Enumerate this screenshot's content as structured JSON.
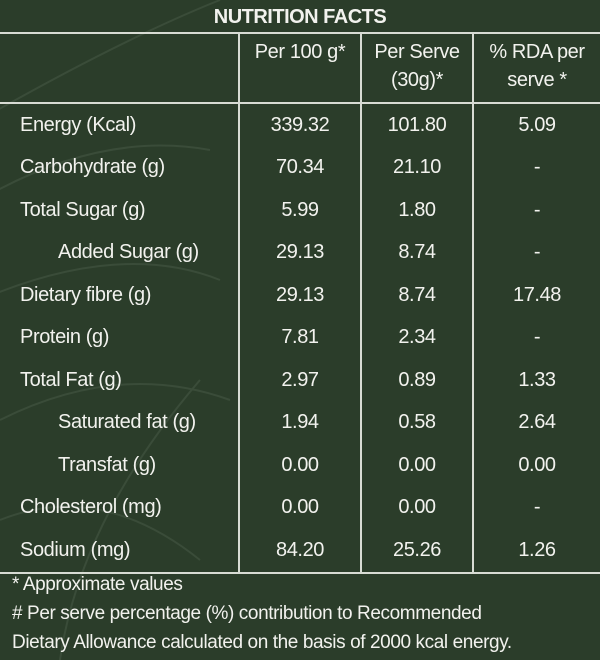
{
  "title": "NUTRITION FACTS",
  "headers": [
    "",
    "Per 100 g*",
    "Per Serve (30g)*",
    "% RDA per serve *"
  ],
  "rows": [
    {
      "name": "Energy (Kcal)",
      "per100": "339.32",
      "perServe": "101.80",
      "rda": "5.09",
      "indent": false
    },
    {
      "name": "Carbohydrate (g)",
      "per100": "70.34",
      "perServe": "21.10",
      "rda": "-",
      "indent": false
    },
    {
      "name": "Total Sugar (g)",
      "per100": "5.99",
      "perServe": "1.80",
      "rda": "-",
      "indent": false
    },
    {
      "name": "Added Sugar (g)",
      "per100": "29.13",
      "perServe": "8.74",
      "rda": "-",
      "indent": true
    },
    {
      "name": "Dietary fibre (g)",
      "per100": "29.13",
      "perServe": "8.74",
      "rda": "17.48",
      "indent": false
    },
    {
      "name": "Protein (g)",
      "per100": "7.81",
      "perServe": "2.34",
      "rda": "-",
      "indent": false
    },
    {
      "name": "Total Fat (g)",
      "per100": "2.97",
      "perServe": "0.89",
      "rda": "1.33",
      "indent": false
    },
    {
      "name": "Saturated fat (g)",
      "per100": "1.94",
      "perServe": "0.58",
      "rda": "2.64",
      "indent": true
    },
    {
      "name": "Transfat (g)",
      "per100": "0.00",
      "perServe": "0.00",
      "rda": "0.00",
      "indent": true
    },
    {
      "name": "Cholesterol (mg)",
      "per100": "0.00",
      "perServe": "0.00",
      "rda": "-",
      "indent": false
    },
    {
      "name": "Sodium (mg)",
      "per100": "84.20",
      "perServe": "25.26",
      "rda": "1.26",
      "indent": false
    }
  ],
  "notes": [
    "* Approximate values",
    "# Per serve percentage (%) contribution to Recommended",
    "Dietary Allowance calculated on the basis of 2000 kcal energy."
  ],
  "colors": {
    "background": "#2b3d2a",
    "text": "#f2f2ee",
    "lines": "#d8dcd4"
  }
}
